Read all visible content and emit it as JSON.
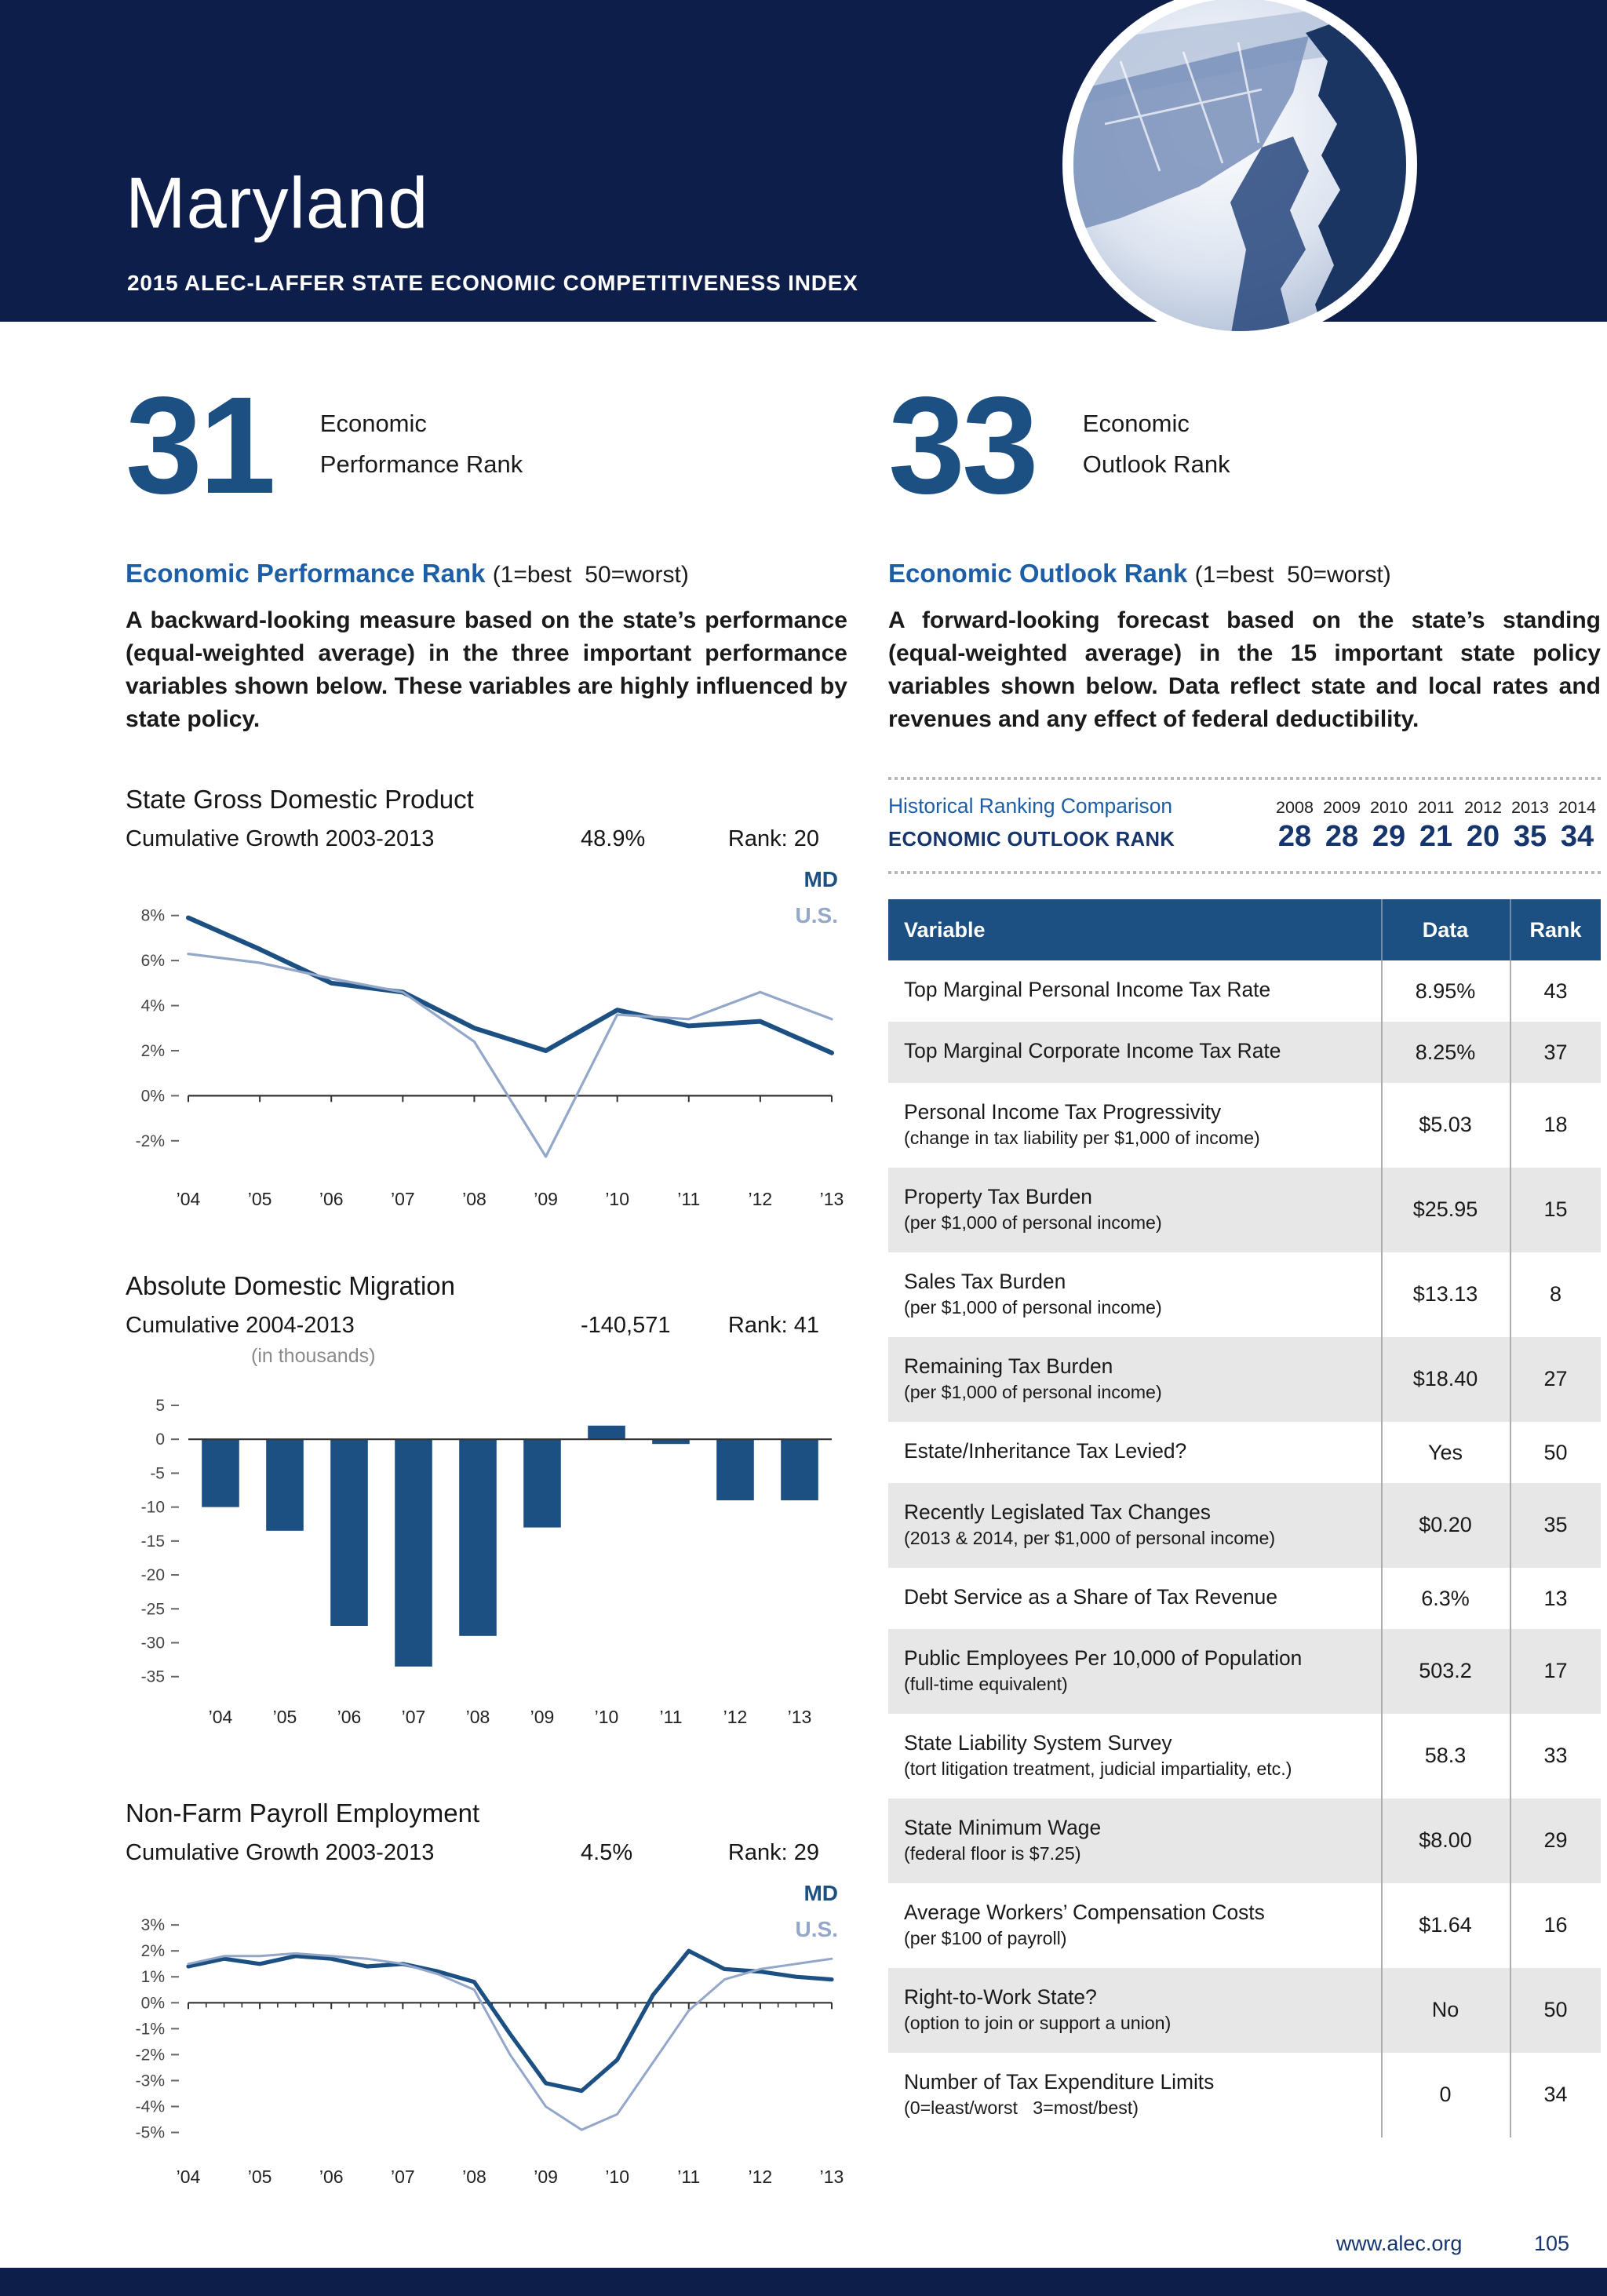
{
  "header": {
    "title": "Maryland",
    "subtitle": "2015 ALEC-LAFFER STATE ECONOMIC COMPETITIVENESS INDEX"
  },
  "colors": {
    "band_navy": "#0e1e4a",
    "primary_navy": "#1c4f82",
    "heading_blue": "#1d5fa7",
    "us_line_blue": "#93a7c9",
    "rank_navy": "#16356d",
    "row_shade": "#e7e7e7"
  },
  "performance": {
    "rank": "31",
    "rank_label": [
      "Economic",
      "Performance Rank"
    ],
    "heading": "Economic Performance Rank",
    "heading_note": "(1=best  50=worst)",
    "description": "A backward-looking measure based on the state’s performance (equal-weighted average) in the three important performance variables shown below. These variables are highly influenced by state policy."
  },
  "outlook": {
    "rank": "33",
    "rank_label": [
      "Economic",
      "Outlook Rank"
    ],
    "heading": "Economic Outlook Rank",
    "heading_note": "(1=best  50=worst)",
    "description": "A forward-looking forecast based on the state’s standing (equal-weighted average) in the 15 important state policy variables shown below. Data reflect state and local rates and revenues and any effect of federal deductibility.",
    "historical": {
      "title": "Historical Ranking Comparison",
      "row_label": "ECONOMIC OUTLOOK RANK",
      "years": [
        "2008",
        "2009",
        "2010",
        "2011",
        "2012",
        "2013",
        "2014"
      ],
      "ranks": [
        "28",
        "28",
        "29",
        "21",
        "20",
        "35",
        "34"
      ]
    },
    "table": {
      "headers": [
        "Variable",
        "Data",
        "Rank"
      ],
      "rows": [
        {
          "name": "Top Marginal Personal Income Tax Rate",
          "note": "",
          "data": "8.95%",
          "rank": "43"
        },
        {
          "name": "Top Marginal Corporate Income Tax Rate",
          "note": "",
          "data": "8.25%",
          "rank": "37"
        },
        {
          "name": "Personal Income Tax Progressivity",
          "note": "(change in tax liability per $1,000 of income)",
          "data": "$5.03",
          "rank": "18"
        },
        {
          "name": "Property Tax Burden",
          "note": "(per $1,000 of personal income)",
          "data": "$25.95",
          "rank": "15"
        },
        {
          "name": "Sales Tax Burden",
          "note": "(per $1,000 of personal income)",
          "data": "$13.13",
          "rank": "8"
        },
        {
          "name": "Remaining Tax Burden",
          "note": "(per $1,000 of personal income)",
          "data": "$18.40",
          "rank": "27"
        },
        {
          "name": "Estate/Inheritance Tax Levied?",
          "note": "",
          "data": "Yes",
          "rank": "50"
        },
        {
          "name": "Recently Legislated Tax Changes",
          "note": "(2013 & 2014, per $1,000 of personal income)",
          "data": "$0.20",
          "rank": "35"
        },
        {
          "name": "Debt Service as a Share of Tax Revenue",
          "note": "",
          "data": "6.3%",
          "rank": "13"
        },
        {
          "name": "Public Employees Per 10,000 of Population",
          "note": "(full-time equivalent)",
          "data": "503.2",
          "rank": "17"
        },
        {
          "name": "State Liability System Survey",
          "note": "(tort litigation treatment, judicial impartiality, etc.)",
          "data": "58.3",
          "rank": "33"
        },
        {
          "name": "State Minimum Wage",
          "note": "(federal floor is $7.25)",
          "data": "$8.00",
          "rank": "29"
        },
        {
          "name": "Average Workers’ Compensation Costs",
          "note": "(per $100 of payroll)",
          "data": "$1.64",
          "rank": "16"
        },
        {
          "name": "Right-to-Work State?",
          "note": "(option to join or support a union)",
          "data": "No",
          "rank": "50"
        },
        {
          "name": "Number of Tax Expenditure Limits",
          "note": "(0=least/worst   3=most/best)",
          "data": "0",
          "rank": "34"
        }
      ]
    }
  },
  "chart_data": [
    {
      "id": "gdp",
      "type": "line",
      "title": "State Gross Domestic Product",
      "subtitle": "Cumulative Growth 2003-2013",
      "value": "48.9%",
      "rank": "Rank: 20",
      "unit_note": "",
      "x_tick_labels": [
        "’04",
        "’05",
        "’06",
        "’07",
        "’08",
        "’09",
        "’10",
        "’11",
        "’12",
        "’13"
      ],
      "y_ticks": [
        [
          8,
          "8%"
        ],
        [
          6,
          "6%"
        ],
        [
          4,
          "4%"
        ],
        [
          2,
          "2%"
        ],
        [
          0,
          "0%"
        ],
        [
          -2,
          "-2%"
        ]
      ],
      "ylim": [
        -3.4,
        9.0
      ],
      "grid": false,
      "legend_position": "top-right",
      "series": [
        {
          "name": "MD",
          "color": "#1c4f82",
          "width": 3,
          "values": [
            7.9,
            6.5,
            5.0,
            4.6,
            3.0,
            2.0,
            3.8,
            3.1,
            3.3,
            1.9
          ]
        },
        {
          "name": "U.S.",
          "color": "#93a7c9",
          "width": 1.6,
          "values": [
            6.3,
            5.9,
            5.2,
            4.6,
            2.4,
            -2.7,
            3.6,
            3.4,
            4.6,
            3.4
          ]
        }
      ]
    },
    {
      "id": "migration",
      "type": "bar",
      "title": "Absolute Domestic Migration",
      "subtitle": "Cumulative 2004-2013",
      "value": "-140,571",
      "rank": "Rank: 41",
      "unit_note": "(in thousands)",
      "categories": [
        "’04",
        "’05",
        "’06",
        "’07",
        "’08",
        "’09",
        "’10",
        "’11",
        "’12",
        "’13"
      ],
      "x_tick_labels": [
        "’04",
        "’05",
        "’06",
        "’07",
        "’08",
        "’09",
        "’10",
        "’11",
        "’12",
        "’13"
      ],
      "y_ticks": [
        [
          5,
          "5"
        ],
        [
          0,
          "0"
        ],
        [
          -5,
          "-5"
        ],
        [
          -10,
          "-10"
        ],
        [
          -15,
          "-15"
        ],
        [
          -20,
          "-20"
        ],
        [
          -25,
          "-25"
        ],
        [
          -30,
          "-30"
        ],
        [
          -35,
          "-35"
        ]
      ],
      "ylim": [
        -37,
        6.5
      ],
      "grid": false,
      "bar_color": "#1c4f82",
      "values": [
        -10,
        -13.5,
        -27.5,
        -33.5,
        -29,
        -13,
        2,
        -0.7,
        -9,
        -9
      ]
    },
    {
      "id": "payroll",
      "type": "line",
      "title": "Non-Farm Payroll Employment",
      "subtitle": "Cumulative Growth 2003-2013",
      "value": "4.5%",
      "rank": "Rank: 29",
      "unit_note": "",
      "x_tick_labels": [
        "’04",
        "’05",
        "’06",
        "’07",
        "’08",
        "’09",
        "’10",
        "’11",
        "’12",
        "’13"
      ],
      "y_ticks": [
        [
          3,
          "3%"
        ],
        [
          2,
          "2%"
        ],
        [
          1,
          "1%"
        ],
        [
          0,
          "0%"
        ],
        [
          -1,
          "-1%"
        ],
        [
          -2,
          "-2%"
        ],
        [
          -3,
          "-3%"
        ],
        [
          -4,
          "-4%"
        ],
        [
          -5,
          "-5%"
        ]
      ],
      "ylim": [
        -5.8,
        3.7
      ],
      "grid": false,
      "series": [
        {
          "name": "MD",
          "color": "#1c4f82",
          "width": 2.6,
          "values": [
            1.4,
            1.7,
            1.5,
            1.8,
            1.7,
            1.4,
            1.5,
            1.2,
            0.8,
            -1.2,
            -3.1,
            -3.4,
            -2.2,
            0.3,
            2.0,
            1.3,
            1.2,
            1.0,
            0.9
          ]
        },
        {
          "name": "U.S.",
          "color": "#93a7c9",
          "width": 1.5,
          "values": [
            1.5,
            1.8,
            1.8,
            1.9,
            1.8,
            1.7,
            1.5,
            1.1,
            0.5,
            -2.0,
            -4.0,
            -4.9,
            -4.3,
            -2.3,
            -0.3,
            0.9,
            1.3,
            1.5,
            1.7
          ]
        }
      ]
    }
  ],
  "footer": {
    "url": "www.alec.org",
    "page": "105"
  }
}
